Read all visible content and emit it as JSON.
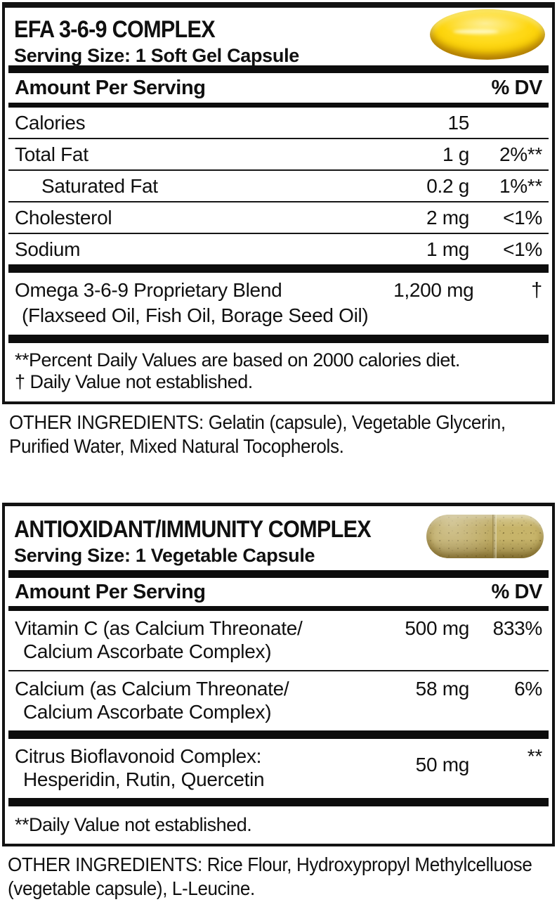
{
  "colors": {
    "text": "#101010",
    "rule_bars": "#0d0d0d",
    "softgel_yellow": "#fdd307",
    "veg_capsule_tan": "#c7b46a",
    "background": "#ffffff"
  },
  "panel1": {
    "title": "EFA 3-6-9 COMPLEX",
    "serving_size": "Serving Size: 1 Soft Gel Capsule",
    "capsule_icon": "softgel-capsule",
    "header": {
      "amount": "Amount Per Serving",
      "dv": "% DV"
    },
    "rows": [
      {
        "label": "Calories",
        "amount": "15",
        "dv": ""
      },
      {
        "label": "Total Fat",
        "amount": "1 g",
        "dv": "2%**"
      },
      {
        "label": "Saturated Fat",
        "amount": "0.2 g",
        "dv": "1%**"
      },
      {
        "label": "Cholesterol",
        "amount": "2 mg",
        "dv": "<1%"
      },
      {
        "label": "Sodium",
        "amount": "1 mg",
        "dv": "<1%"
      }
    ],
    "blend": {
      "name": "Omega 3-6-9 Proprietary Blend",
      "components": "(Flaxseed Oil, Fish Oil, Borage Seed Oil)",
      "amount": "1,200 mg",
      "dv": "†"
    },
    "footnotes": [
      "**Percent Daily Values are based on 2000 calories diet.",
      "† Daily Value not established."
    ],
    "other_ingredients": {
      "line1": "OTHER INGREDIENTS: Gelatin (capsule), Vegetable Glycerin,",
      "line2": "Purified Water, Mixed Natural Tocopherols."
    }
  },
  "panel2": {
    "title": "ANTIOXIDANT/IMMUNITY COMPLEX",
    "serving_size": "Serving Size: 1 Vegetable Capsule",
    "capsule_icon": "vegetable-capsule",
    "header": {
      "amount": "Amount Per Serving",
      "dv": "% DV"
    },
    "rows": [
      {
        "line1": "Vitamin C (as Calcium Threonate/",
        "line2": "Calcium Ascorbate Complex)",
        "amount": "500 mg",
        "dv": "833%"
      },
      {
        "line1": "Calcium (as Calcium Threonate/",
        "line2": "Calcium Ascorbate Complex)",
        "amount": "58 mg",
        "dv": "6%"
      },
      {
        "line1": "Citrus Bioflavonoid Complex:",
        "line2": "Hesperidin, Rutin, Quercetin",
        "amount": "50 mg",
        "dv": "**"
      }
    ],
    "footnote": "**Daily Value not established.",
    "other_ingredients": {
      "line1": "OTHER INGREDIENTS: Rice Flour, Hydroxypropyl Methylcelluose",
      "line2": "(vegetable capsule), L-Leucine."
    }
  }
}
